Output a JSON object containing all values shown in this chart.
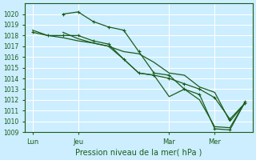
{
  "bg_color": "#cceeff",
  "grid_color": "#ffffff",
  "line_color": "#1a5c1a",
  "marker_color": "#1a5c1a",
  "ylim": [
    1009,
    1021
  ],
  "yticks": [
    1009,
    1010,
    1011,
    1012,
    1013,
    1014,
    1015,
    1016,
    1017,
    1018,
    1019,
    1020
  ],
  "xlabel": "Pression niveau de la mer( hPa )",
  "xtick_labels": [
    "Lun",
    "Jeu",
    "Mar",
    "Mer"
  ],
  "xtick_positions": [
    0,
    3,
    9,
    12
  ],
  "title": "",
  "lines": [
    {
      "x": [
        0,
        1,
        2,
        3,
        4,
        5,
        6,
        7,
        8,
        9,
        10,
        11,
        12,
        13,
        14
      ],
      "y": [
        1018.3,
        1018.0,
        1018.0,
        1018.0,
        1017.5,
        1017.2,
        1015.8,
        1014.5,
        1014.3,
        1014.0,
        1013.5,
        1013.0,
        1012.2,
        1010.2,
        1011.7
      ],
      "marker": "+"
    },
    {
      "x": [
        0,
        1,
        2,
        3,
        4,
        5,
        6,
        7,
        8,
        9,
        10,
        11,
        12,
        13,
        14
      ],
      "y": [
        1018.5,
        1018.0,
        1017.8,
        1017.5,
        1017.3,
        1017.0,
        1016.5,
        1016.3,
        1015.5,
        1014.5,
        1014.3,
        1013.2,
        1012.7,
        1010.0,
        1011.7
      ],
      "marker": null
    },
    {
      "x": [
        2,
        3,
        4,
        5,
        6,
        7,
        8,
        9,
        10,
        11,
        12,
        13,
        14
      ],
      "y": [
        1020.0,
        1020.2,
        1019.3,
        1018.8,
        1018.5,
        1016.5,
        1014.5,
        1014.3,
        1013.0,
        1012.5,
        1009.3,
        1009.2,
        1011.8
      ],
      "marker": "+"
    },
    {
      "x": [
        2,
        3,
        4,
        5,
        6,
        7,
        8,
        9,
        10,
        11,
        12,
        13,
        14
      ],
      "y": [
        1018.3,
        1017.7,
        1017.3,
        1017.0,
        1015.8,
        1014.5,
        1014.3,
        1012.3,
        1013.0,
        1012.0,
        1009.5,
        1009.4,
        1011.8
      ],
      "marker": null
    }
  ]
}
